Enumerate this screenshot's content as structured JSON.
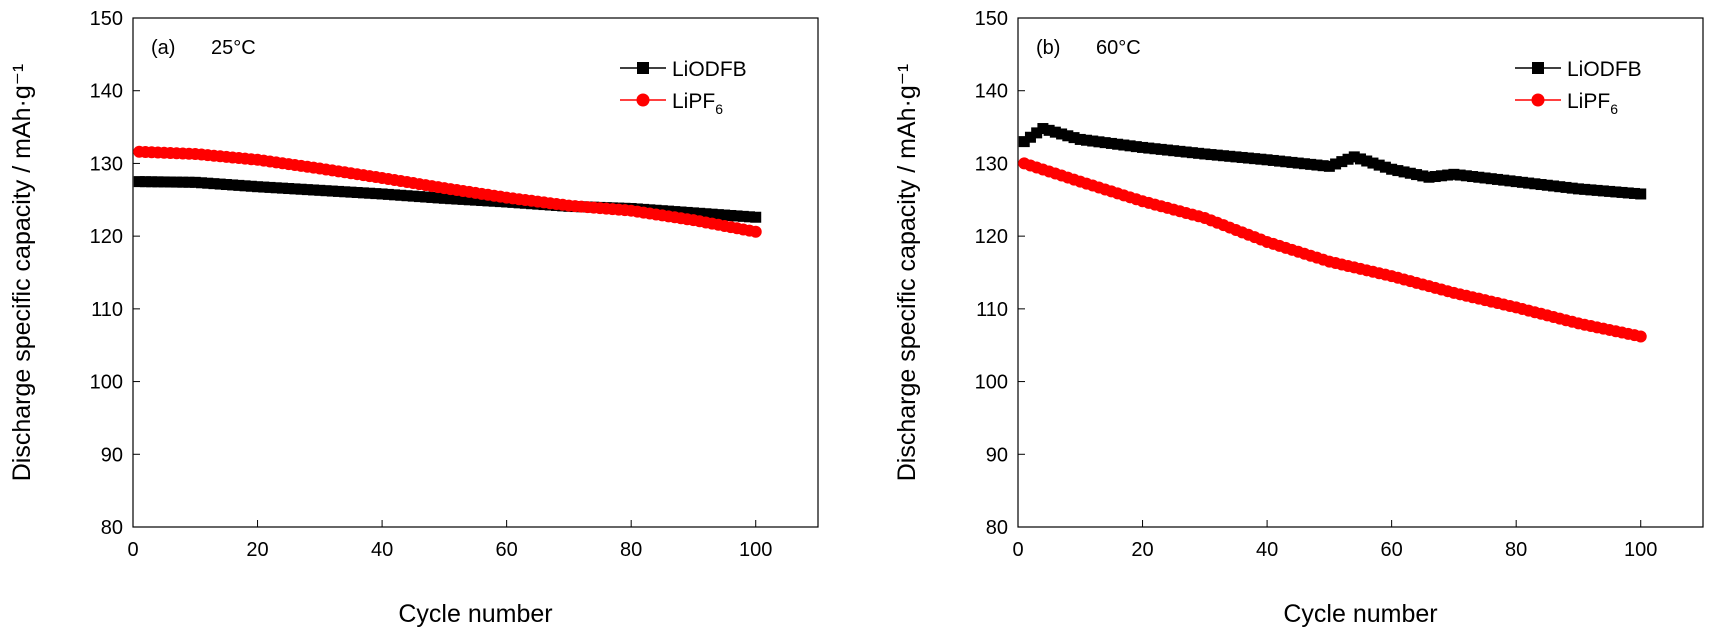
{
  "chart_data": [
    {
      "type": "line",
      "panel_label": "(a)",
      "temperature": "25°C",
      "xlabel": "Cycle number",
      "ylabel": "Discharge specific capacity / mAh·g⁻¹",
      "xlim": [
        0,
        110
      ],
      "ylim": [
        80,
        150
      ],
      "xticks": [
        0,
        20,
        40,
        60,
        80,
        100
      ],
      "yticks": [
        80,
        90,
        100,
        110,
        120,
        130,
        140,
        150
      ],
      "legend_position": "top-right",
      "series": [
        {
          "name": "LiODFB",
          "color": "#000000",
          "marker": "square",
          "x": [
            1,
            10,
            20,
            30,
            40,
            50,
            60,
            70,
            80,
            90,
            100
          ],
          "y": [
            127.5,
            127.4,
            126.8,
            126.3,
            125.8,
            125.2,
            124.7,
            124.1,
            123.8,
            123.2,
            122.6
          ]
        },
        {
          "name": "LiPF6",
          "color": "#ff0000",
          "marker": "circle",
          "x": [
            1,
            10,
            20,
            30,
            40,
            50,
            60,
            70,
            80,
            90,
            100
          ],
          "y": [
            131.6,
            131.3,
            130.5,
            129.3,
            128.0,
            126.6,
            125.3,
            124.2,
            123.5,
            122.2,
            120.6
          ]
        }
      ]
    },
    {
      "type": "line",
      "panel_label": "(b)",
      "temperature": "60°C",
      "xlabel": "Cycle number",
      "ylabel": "Discharge specific capacity / mAh·g⁻¹",
      "xlim": [
        0,
        110
      ],
      "ylim": [
        80,
        150
      ],
      "xticks": [
        0,
        20,
        40,
        60,
        80,
        100
      ],
      "yticks": [
        80,
        90,
        100,
        110,
        120,
        130,
        140,
        150
      ],
      "legend_position": "top-right",
      "series": [
        {
          "name": "LiODFB",
          "color": "#000000",
          "marker": "square",
          "x": [
            1,
            4,
            10,
            20,
            30,
            40,
            50,
            54,
            60,
            66,
            70,
            80,
            90,
            100
          ],
          "y": [
            133.0,
            134.8,
            133.3,
            132.2,
            131.3,
            130.5,
            129.6,
            130.9,
            129.2,
            128.1,
            128.5,
            127.5,
            126.5,
            125.8
          ]
        },
        {
          "name": "LiPF6",
          "color": "#ff0000",
          "marker": "circle",
          "x": [
            1,
            10,
            20,
            30,
            40,
            50,
            60,
            70,
            80,
            90,
            100
          ],
          "y": [
            130.0,
            127.5,
            124.8,
            122.5,
            119.2,
            116.5,
            114.5,
            112.2,
            110.2,
            108.0,
            106.2
          ]
        }
      ]
    }
  ]
}
